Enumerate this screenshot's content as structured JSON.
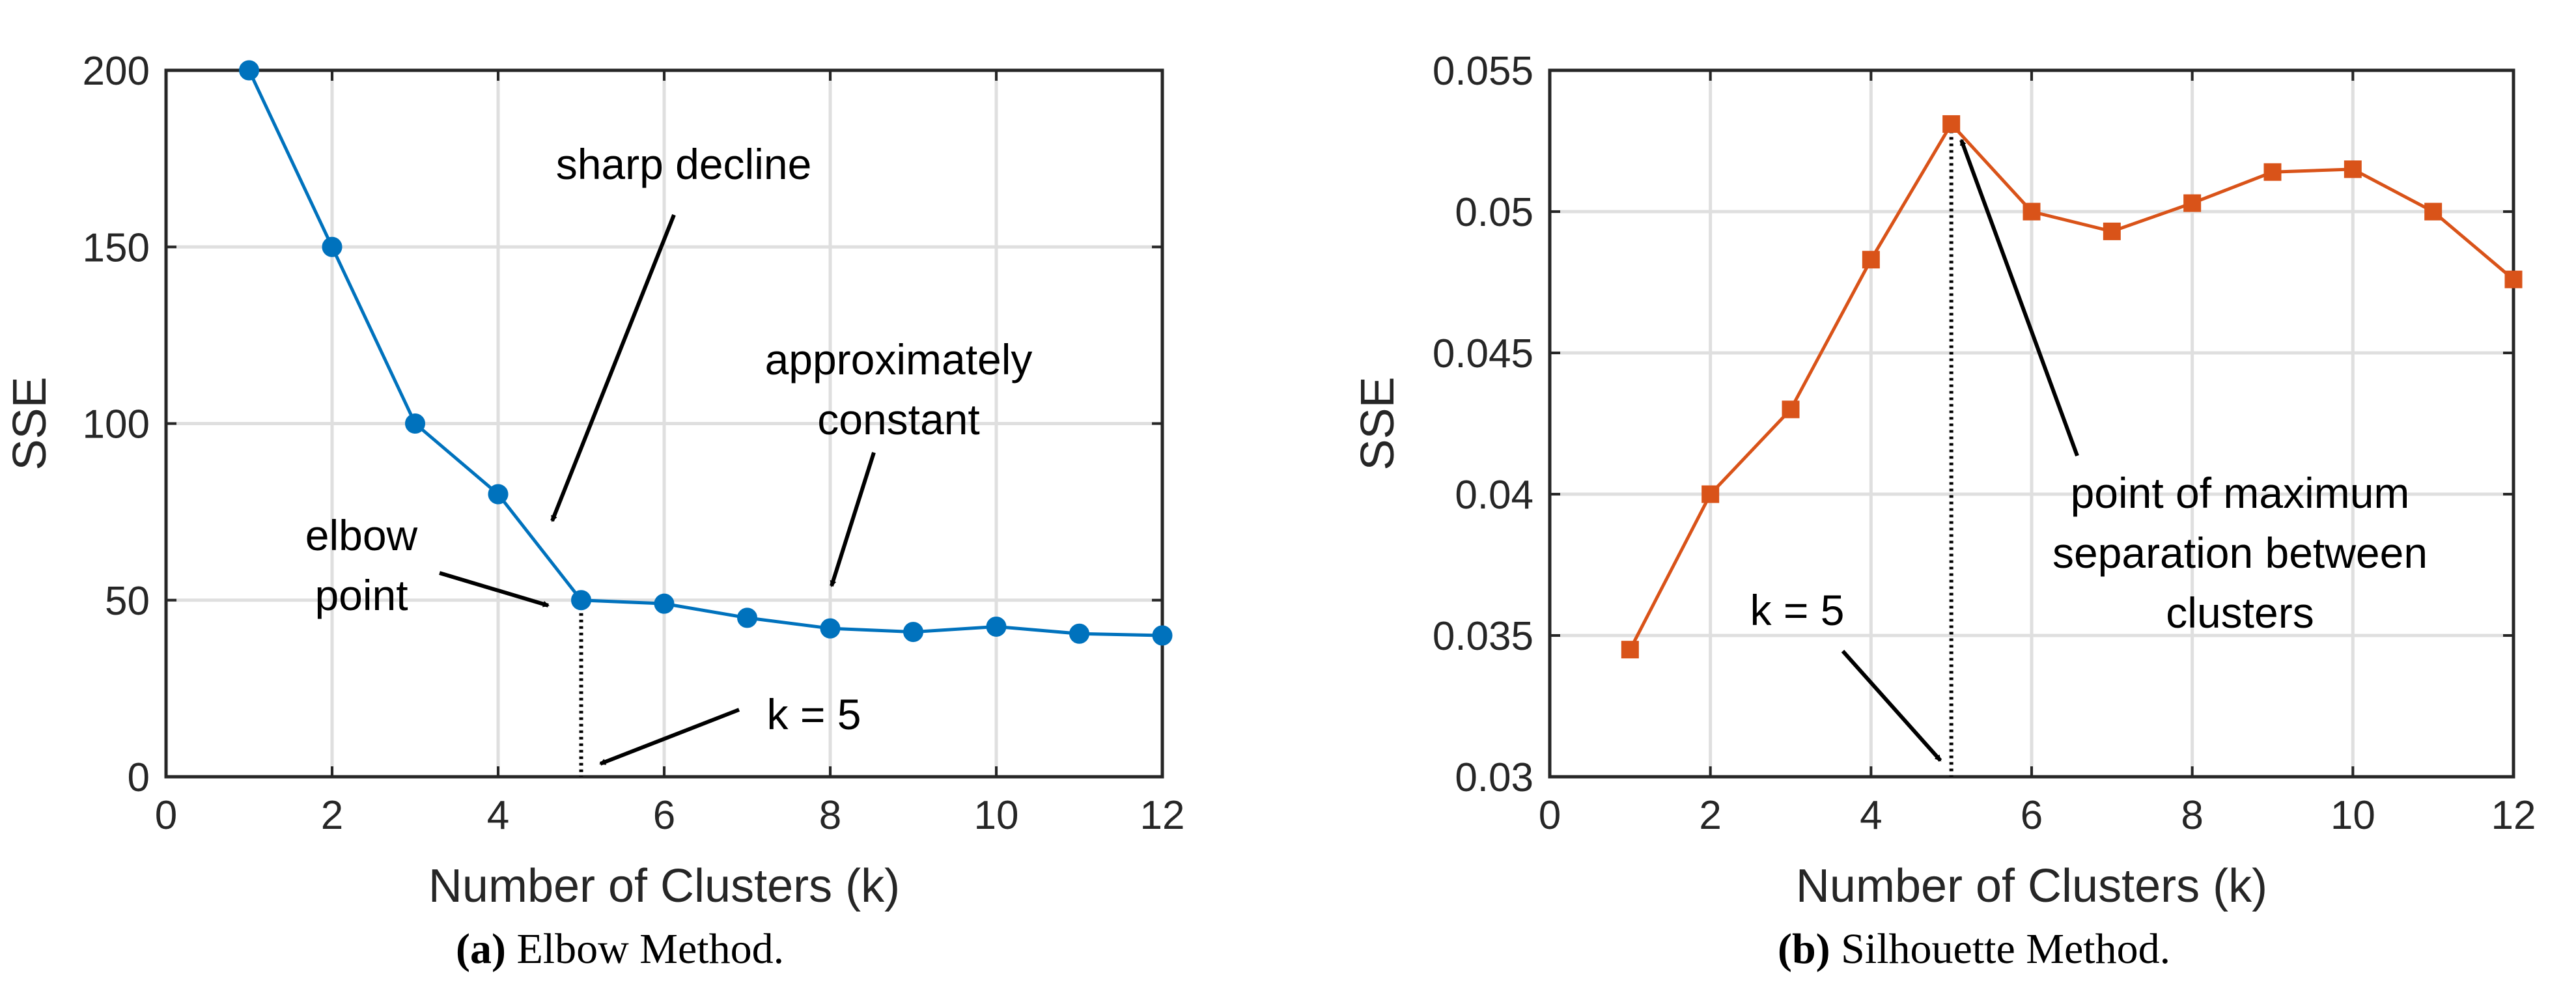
{
  "chart_data": [
    {
      "type": "line",
      "caption_tag": "(a)",
      "caption_text": "Elbow Method.",
      "xlabel": "Number of Clusters (k)",
      "ylabel": "SSE",
      "xlim": [
        0,
        12
      ],
      "ylim": [
        0,
        200
      ],
      "xticks": [
        "0",
        "2",
        "4",
        "6",
        "8",
        "10",
        "12"
      ],
      "yticks": [
        "0",
        "50",
        "100",
        "150",
        "200"
      ],
      "grid": true,
      "marker": "circle",
      "color": "#0072BD",
      "series": [
        {
          "x": [
            1,
            2,
            3,
            4,
            5,
            6,
            7,
            8,
            9,
            10,
            11,
            12
          ],
          "values": [
            200,
            150,
            100,
            80,
            50,
            49,
            45,
            42,
            41,
            42.5,
            40.5,
            40
          ]
        }
      ],
      "annotations": [
        {
          "text": [
            "sharp decline"
          ]
        },
        {
          "text": [
            "approximately",
            "constant"
          ]
        },
        {
          "text": [
            "elbow",
            "point"
          ]
        },
        {
          "text": [
            "k = 5"
          ]
        }
      ]
    },
    {
      "type": "line",
      "caption_tag": "(b)",
      "caption_text": "Silhouette Method.",
      "xlabel": "Number of Clusters (k)",
      "ylabel": "SSE",
      "xlim": [
        0,
        12
      ],
      "ylim": [
        0.03,
        0.055
      ],
      "xticks": [
        "0",
        "2",
        "4",
        "6",
        "8",
        "10",
        "12"
      ],
      "yticks": [
        "0.03",
        "0.035",
        "0.04",
        "0.045",
        "0.05",
        "0.055"
      ],
      "grid": true,
      "marker": "square",
      "color": "#D95319",
      "series": [
        {
          "x": [
            1,
            2,
            3,
            4,
            5,
            6,
            7,
            8,
            9,
            10,
            11,
            12
          ],
          "values": [
            0.0345,
            0.04,
            0.043,
            0.0483,
            0.0531,
            0.05,
            0.0493,
            0.0503,
            0.0514,
            0.0515,
            0.05,
            0.0476
          ]
        }
      ],
      "annotations": [
        {
          "text": [
            "point of maximum",
            "separation between",
            "clusters"
          ]
        },
        {
          "text": [
            "k = 5"
          ]
        }
      ]
    }
  ]
}
